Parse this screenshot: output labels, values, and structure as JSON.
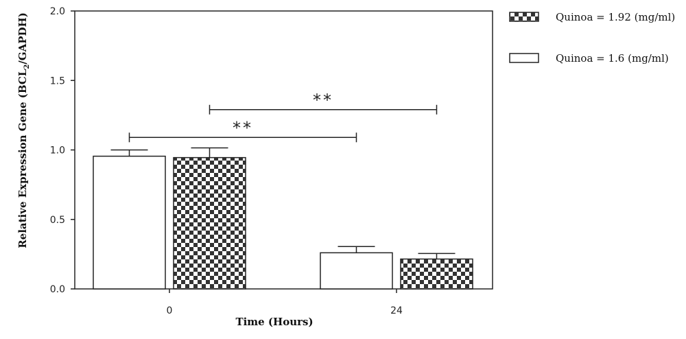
{
  "chart_data": {
    "type": "bar",
    "categories": [
      "0",
      "24"
    ],
    "series": [
      {
        "name": "Quinoa = 1.6 (mg/ml)",
        "pattern": "plain",
        "values": [
          0.955,
          0.26
        ],
        "errors": [
          0.045,
          0.045
        ]
      },
      {
        "name": "Quinoa = 1.92 (mg/ml)",
        "pattern": "checker",
        "values": [
          0.945,
          0.215
        ],
        "errors": [
          0.07,
          0.04
        ]
      }
    ],
    "xlabel": "Time (Hours)",
    "ylabel_main": "Relative Expression Gene (BCL",
    "ylabel_sub": "2",
    "ylabel_tail": "/GAPDH)",
    "ylim": [
      0,
      2.0
    ],
    "yticks": [
      "0.0",
      "0.5",
      "1.0",
      "1.5",
      "2.0"
    ],
    "legend": {
      "placement": "right",
      "entries": [
        {
          "label": "Quinoa = 1.92 (mg/ml)",
          "pattern": "checker"
        },
        {
          "label": "Quinoa = 1.6 (mg/ml)",
          "pattern": "plain"
        }
      ]
    },
    "significance": [
      {
        "label": "**",
        "y": 1.09,
        "from": "0-plain",
        "to": "24-plain"
      },
      {
        "label": "**",
        "y": 1.29,
        "from": "0-checker",
        "to": "24-checker"
      }
    ],
    "colors": {
      "bar_fill": "#ffffff",
      "checker_dark": "#333333",
      "stroke": "#222222"
    }
  }
}
